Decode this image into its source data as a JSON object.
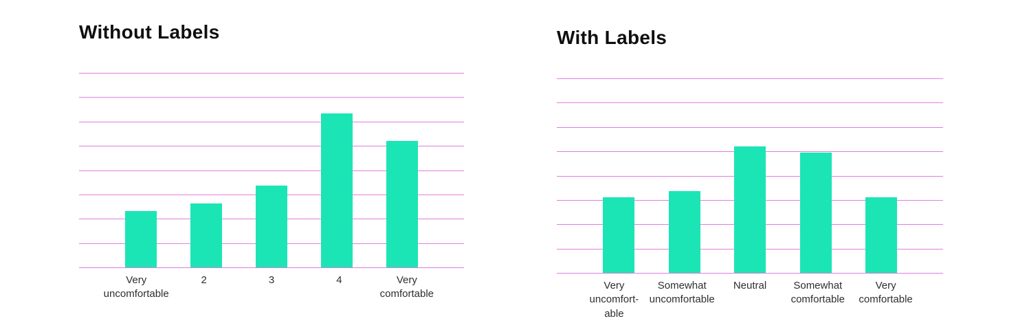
{
  "page": {
    "background": "#ffffff"
  },
  "chart_data": [
    {
      "type": "bar",
      "title": "Without Labels",
      "categories": [
        "Very\nuncomfortable",
        "2",
        "3",
        "4",
        "Very\ncomfortable"
      ],
      "values": [
        29,
        33,
        42,
        79,
        65
      ],
      "ylim": [
        0,
        100
      ],
      "xlabel": "",
      "ylabel": "",
      "gridline_count": 9,
      "grid_color": "#e07de0",
      "bar_color": "#1be5b5",
      "legend": "none"
    },
    {
      "type": "bar",
      "title": "With Labels",
      "categories": [
        "Very\nuncomfort-\nable",
        "Somewhat\nuncomfortable",
        "Neutral",
        "Somewhat\ncomfortable",
        "Very\ncomfortable"
      ],
      "values": [
        39,
        42,
        65,
        62,
        39
      ],
      "ylim": [
        0,
        100
      ],
      "xlabel": "",
      "ylabel": "",
      "gridline_count": 9,
      "grid_color": "#e07de0",
      "bar_color": "#1be5b5",
      "legend": "none"
    }
  ]
}
